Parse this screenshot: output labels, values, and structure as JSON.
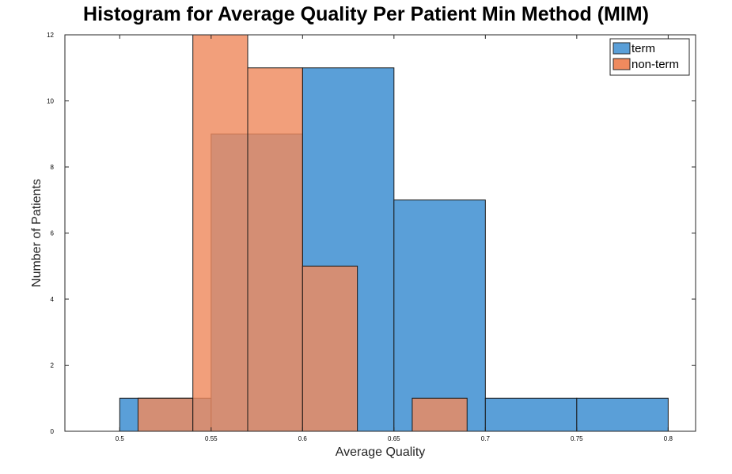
{
  "chart_data": {
    "type": "bar",
    "title": "Histogram for Average Quality Per Patient Min Method (MIM)",
    "xlabel": "Average Quality",
    "ylabel": "Number of Patients",
    "xlim": [
      0.47,
      0.815
    ],
    "ylim": [
      0,
      12
    ],
    "xticks": [
      0.5,
      0.55,
      0.6,
      0.65,
      0.7,
      0.75,
      0.8
    ],
    "xtick_labels": [
      "0.5",
      "0.55",
      "0.6",
      "0.65",
      "0.7",
      "0.75",
      "0.8"
    ],
    "yticks": [
      0,
      2,
      4,
      6,
      8,
      10,
      12
    ],
    "ytick_labels": [
      "0",
      "2",
      "4",
      "6",
      "8",
      "10",
      "12"
    ],
    "grid": false,
    "legend_position": "top-right",
    "series": [
      {
        "name": "term",
        "color": "#5a9fd8",
        "bins": [
          {
            "x0": 0.5,
            "x1": 0.55,
            "count": 1
          },
          {
            "x0": 0.55,
            "x1": 0.6,
            "count": 9
          },
          {
            "x0": 0.6,
            "x1": 0.65,
            "count": 11
          },
          {
            "x0": 0.65,
            "x1": 0.7,
            "count": 7
          },
          {
            "x0": 0.7,
            "x1": 0.75,
            "count": 1
          },
          {
            "x0": 0.75,
            "x1": 0.8,
            "count": 1
          }
        ]
      },
      {
        "name": "non-term",
        "color": "#ef8a5e",
        "bins": [
          {
            "x0": 0.51,
            "x1": 0.54,
            "count": 1
          },
          {
            "x0": 0.54,
            "x1": 0.57,
            "count": 12
          },
          {
            "x0": 0.57,
            "x1": 0.6,
            "count": 11
          },
          {
            "x0": 0.6,
            "x1": 0.63,
            "count": 5
          },
          {
            "x0": 0.63,
            "x1": 0.66,
            "count": 0
          },
          {
            "x0": 0.66,
            "x1": 0.69,
            "count": 1
          }
        ]
      }
    ]
  }
}
